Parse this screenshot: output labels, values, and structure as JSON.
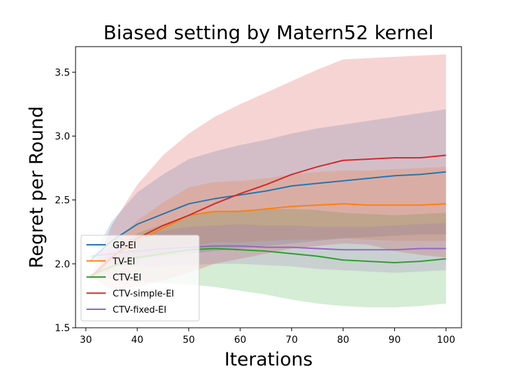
{
  "chart_data": {
    "type": "line",
    "title": "Biased setting by Matern52 kernel",
    "xlabel": "Iterations",
    "ylabel": "Regret per Round",
    "xlim": [
      28,
      103
    ],
    "ylim": [
      1.5,
      3.7
    ],
    "xticks": [
      30,
      40,
      50,
      60,
      70,
      80,
      90,
      100
    ],
    "yticks": [
      1.5,
      2.0,
      2.5,
      3.0,
      3.5
    ],
    "xtick_labels": [
      "30",
      "40",
      "50",
      "60",
      "70",
      "80",
      "90",
      "100"
    ],
    "ytick_labels": [
      "1.5",
      "2.0",
      "2.5",
      "3.0",
      "3.5"
    ],
    "legend_position": "lower-left",
    "x": [
      31,
      35,
      40,
      45,
      50,
      55,
      60,
      65,
      70,
      75,
      80,
      85,
      90,
      95,
      100
    ],
    "series": [
      {
        "name": "GP-EI",
        "color": "#1f77b4",
        "values": [
          2.03,
          2.18,
          2.31,
          2.39,
          2.47,
          2.51,
          2.54,
          2.57,
          2.61,
          2.63,
          2.65,
          2.67,
          2.69,
          2.7,
          2.72
        ],
        "lower": [
          2.03,
          2.03,
          2.04,
          2.06,
          2.08,
          2.1,
          2.12,
          2.14,
          2.16,
          2.18,
          2.2,
          2.21,
          2.22,
          2.23,
          2.23
        ],
        "upper": [
          2.03,
          2.33,
          2.56,
          2.7,
          2.82,
          2.88,
          2.93,
          2.97,
          3.02,
          3.06,
          3.09,
          3.12,
          3.15,
          3.18,
          3.21
        ]
      },
      {
        "name": "TV-EI",
        "color": "#ff7f0e",
        "values": [
          1.88,
          2.05,
          2.18,
          2.28,
          2.38,
          2.41,
          2.41,
          2.43,
          2.45,
          2.46,
          2.47,
          2.46,
          2.46,
          2.46,
          2.47
        ],
        "lower": [
          1.88,
          1.96,
          2.02,
          2.08,
          2.14,
          2.17,
          2.17,
          2.18,
          2.19,
          2.19,
          2.2,
          2.19,
          2.18,
          2.18,
          2.18
        ],
        "upper": [
          1.88,
          2.14,
          2.34,
          2.48,
          2.6,
          2.64,
          2.65,
          2.67,
          2.7,
          2.72,
          2.73,
          2.73,
          2.74,
          2.75,
          2.76
        ]
      },
      {
        "name": "CTV-EI",
        "color": "#2ca02c",
        "values": [
          1.91,
          1.98,
          2.05,
          2.08,
          2.11,
          2.12,
          2.11,
          2.1,
          2.08,
          2.06,
          2.03,
          2.02,
          2.01,
          2.02,
          2.04
        ],
        "lower": [
          1.91,
          1.88,
          1.86,
          1.85,
          1.84,
          1.82,
          1.79,
          1.76,
          1.72,
          1.69,
          1.67,
          1.66,
          1.66,
          1.67,
          1.69
        ],
        "upper": [
          1.91,
          2.08,
          2.24,
          2.31,
          2.38,
          2.41,
          2.42,
          2.43,
          2.43,
          2.42,
          2.4,
          2.39,
          2.38,
          2.39,
          2.4
        ]
      },
      {
        "name": "CTV-simple-EI",
        "color": "#d62728",
        "values": [
          1.9,
          2.05,
          2.2,
          2.3,
          2.38,
          2.47,
          2.55,
          2.62,
          2.7,
          2.76,
          2.81,
          2.82,
          2.83,
          2.83,
          2.85
        ],
        "lower": [
          1.9,
          1.8,
          1.82,
          1.87,
          1.93,
          2.0,
          2.04,
          2.08,
          2.12,
          2.14,
          2.16,
          2.15,
          2.1,
          2.07,
          2.05
        ],
        "upper": [
          1.9,
          2.3,
          2.62,
          2.85,
          3.02,
          3.15,
          3.25,
          3.34,
          3.43,
          3.52,
          3.6,
          3.61,
          3.62,
          3.63,
          3.64
        ]
      },
      {
        "name": "CTV-fixed-EI",
        "color": "#9467bd",
        "values": [
          2.06,
          2.08,
          2.1,
          2.12,
          2.13,
          2.14,
          2.14,
          2.13,
          2.13,
          2.12,
          2.11,
          2.11,
          2.11,
          2.12,
          2.12
        ],
        "lower": [
          2.06,
          2.0,
          1.98,
          1.98,
          1.99,
          2.0,
          2.0,
          1.99,
          1.98,
          1.96,
          1.95,
          1.94,
          1.93,
          1.94,
          1.95
        ],
        "upper": [
          2.06,
          2.14,
          2.22,
          2.26,
          2.29,
          2.3,
          2.31,
          2.3,
          2.3,
          2.29,
          2.29,
          2.29,
          2.3,
          2.31,
          2.32
        ]
      }
    ]
  }
}
